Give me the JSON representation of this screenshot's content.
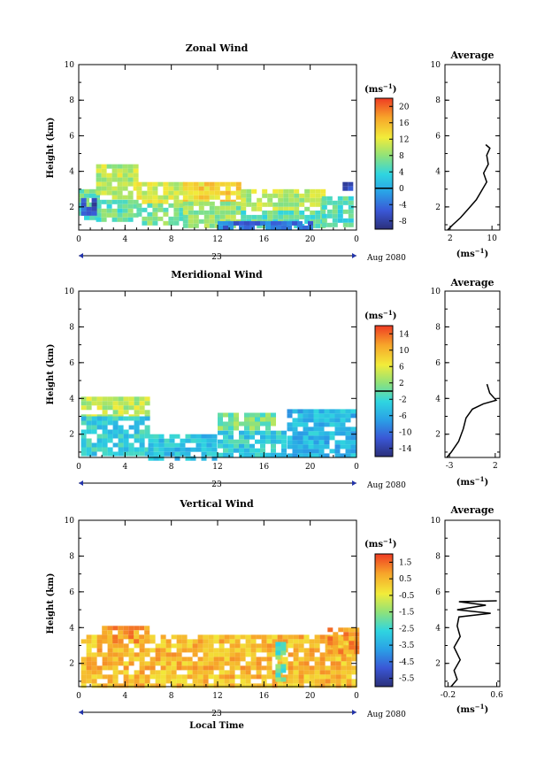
{
  "chart_data": [
    {
      "type": "heatmap",
      "title": "Zonal Wind",
      "ylabel": "Height (km)",
      "x_ticks": [
        "0",
        "4",
        "8",
        "12",
        "16",
        "20",
        "0"
      ],
      "y_ticks": [
        "2",
        "4",
        "6",
        "8",
        "10"
      ],
      "xlim": [
        0,
        24
      ],
      "ylim": [
        0.7,
        10
      ],
      "date_label": "23",
      "month_label": "Aug 2080",
      "colorbar": {
        "unit": "(ms",
        "unit_exp": "−1",
        "unit_close": ")",
        "ticks": [
          "20",
          "16",
          "12",
          "8",
          "4",
          "0",
          "-4",
          "-8"
        ],
        "range": [
          -10,
          22
        ],
        "zero_line": 0
      },
      "field": {
        "bands": [
          {
            "x": [
              0,
              1.5
            ],
            "y": [
              1.4,
              3.0
            ],
            "value": 6
          },
          {
            "x": [
              1.5,
              5
            ],
            "y": [
              2.4,
              4.4
            ],
            "value": 10
          },
          {
            "x": [
              1.5,
              5
            ],
            "y": [
              1.2,
              2.4
            ],
            "value": 6
          },
          {
            "x": [
              5,
              9
            ],
            "y": [
              2.2,
              3.4
            ],
            "value": 11
          },
          {
            "x": [
              5,
              9
            ],
            "y": [
              1.0,
              2.2
            ],
            "value": 7
          },
          {
            "x": [
              9,
              14
            ],
            "y": [
              2.3,
              3.4
            ],
            "value": 14
          },
          {
            "x": [
              9,
              14
            ],
            "y": [
              1.0,
              2.3
            ],
            "value": 8
          },
          {
            "x": [
              14,
              21
            ],
            "y": [
              1.8,
              3.0
            ],
            "value": 10
          },
          {
            "x": [
              14,
              21
            ],
            "y": [
              0.8,
              1.8
            ],
            "value": 6
          },
          {
            "x": [
              12,
              20
            ],
            "y": [
              0.7,
              1.2
            ],
            "value": -4
          },
          {
            "x": [
              0.2,
              1.4
            ],
            "y": [
              1.7,
              2.5
            ],
            "value": -6
          },
          {
            "x": [
              21,
              23.5
            ],
            "y": [
              1.0,
              2.6
            ],
            "value": 5
          },
          {
            "x": [
              22.8,
              23.6
            ],
            "y": [
              2.9,
              3.4
            ],
            "value": -6
          }
        ]
      },
      "average_profile": {
        "title": "Average",
        "xlabel": "(ms",
        "xlabel_exp": "−1",
        "xlabel_close": ")",
        "x_ticks": [
          "2",
          "10"
        ],
        "xlim": [
          1,
          11.5
        ],
        "points": [
          [
            1.5,
            0.7
          ],
          [
            2.5,
            1.0
          ],
          [
            4,
            1.4
          ],
          [
            5.5,
            1.9
          ],
          [
            7,
            2.4
          ],
          [
            8,
            2.9
          ],
          [
            9,
            3.4
          ],
          [
            8.4,
            3.9
          ],
          [
            9.3,
            4.4
          ],
          [
            9.0,
            4.9
          ],
          [
            9.6,
            5.3
          ],
          [
            8.8,
            5.5
          ]
        ]
      }
    },
    {
      "type": "heatmap",
      "title": "Meridional Wind",
      "ylabel": "Height (km)",
      "x_ticks": [
        "0",
        "4",
        "8",
        "12",
        "16",
        "20",
        "0"
      ],
      "y_ticks": [
        "2",
        "4",
        "6",
        "8",
        "10"
      ],
      "xlim": [
        0,
        24
      ],
      "ylim": [
        0.7,
        10
      ],
      "date_label": "23",
      "month_label": "Aug 2080",
      "colorbar": {
        "unit": "(ms",
        "unit_exp": "−1",
        "unit_close": ")",
        "ticks": [
          "14",
          "10",
          "6",
          "2",
          "-2",
          "-6",
          "-10",
          "-14"
        ],
        "range": [
          -16,
          16
        ],
        "zero_line": 0
      },
      "field": {
        "bands": [
          {
            "x": [
              0.2,
              6
            ],
            "y": [
              3.0,
              4.1
            ],
            "value": 4
          },
          {
            "x": [
              0.2,
              6
            ],
            "y": [
              0.8,
              3.0
            ],
            "value": -3
          },
          {
            "x": [
              6,
              12
            ],
            "y": [
              0.7,
              2.0
            ],
            "value": -4
          },
          {
            "x": [
              12,
              17
            ],
            "y": [
              2.2,
              3.2
            ],
            "value": 1
          },
          {
            "x": [
              12,
              18
            ],
            "y": [
              0.7,
              2.2
            ],
            "value": -3
          },
          {
            "x": [
              18,
              24
            ],
            "y": [
              0.8,
              3.4
            ],
            "value": -5
          }
        ]
      },
      "average_profile": {
        "title": "Average",
        "xlabel": "(ms",
        "xlabel_exp": "−1",
        "xlabel_close": ")",
        "x_ticks": [
          "-3",
          "2"
        ],
        "xlim": [
          -3.5,
          2.5
        ],
        "points": [
          [
            -3.3,
            0.7
          ],
          [
            -2.8,
            1.0
          ],
          [
            -2.0,
            1.6
          ],
          [
            -1.5,
            2.3
          ],
          [
            -1.2,
            2.9
          ],
          [
            -0.5,
            3.4
          ],
          [
            0.7,
            3.7
          ],
          [
            2.1,
            3.9
          ],
          [
            1.4,
            4.3
          ],
          [
            1.1,
            4.8
          ]
        ]
      }
    },
    {
      "type": "heatmap",
      "title": "Vertical Wind",
      "ylabel": "Height (km)",
      "x_ticks": [
        "0",
        "4",
        "8",
        "12",
        "16",
        "20",
        "0"
      ],
      "y_ticks": [
        "2",
        "4",
        "6",
        "8",
        "10"
      ],
      "xlim": [
        0,
        24
      ],
      "ylim": [
        0.7,
        10
      ],
      "xlabel": "Local Time",
      "date_label": "23",
      "month_label": "Aug 2080",
      "colorbar": {
        "unit": "(ms",
        "unit_exp": "−1",
        "unit_close": ")",
        "ticks": [
          "1.5",
          "0.5",
          "-0.5",
          "-1.5",
          "-2.5",
          "-3.5",
          "-4.5",
          "-5.5"
        ],
        "range": [
          -6,
          2
        ]
      },
      "field": {
        "bands": [
          {
            "x": [
              0.2,
              24
            ],
            "y": [
              0.7,
              3.6
            ],
            "value": 0.4
          },
          {
            "x": [
              2,
              6
            ],
            "y": [
              3.2,
              4.1
            ],
            "value": 0.8
          },
          {
            "x": [
              21.5,
              24
            ],
            "y": [
              2.6,
              4.0
            ],
            "value": 0.9
          },
          {
            "x": [
              17,
              17.5
            ],
            "y": [
              1.0,
              3.2
            ],
            "value": -2
          }
        ]
      },
      "average_profile": {
        "title": "Average",
        "xlabel": "(ms",
        "xlabel_exp": "−1",
        "xlabel_close": ")",
        "x_ticks": [
          "-0.2",
          "0.6"
        ],
        "xlim": [
          -0.25,
          0.65
        ],
        "points": [
          [
            -0.15,
            0.7
          ],
          [
            -0.05,
            1.1
          ],
          [
            -0.1,
            1.6
          ],
          [
            0.0,
            2.2
          ],
          [
            -0.1,
            2.9
          ],
          [
            0.0,
            3.5
          ],
          [
            -0.05,
            4.1
          ],
          [
            -0.02,
            4.6
          ],
          [
            0.5,
            4.8
          ],
          [
            -0.05,
            5.0
          ],
          [
            0.42,
            5.25
          ],
          [
            -0.02,
            5.45
          ],
          [
            0.6,
            5.5
          ]
        ]
      }
    }
  ]
}
